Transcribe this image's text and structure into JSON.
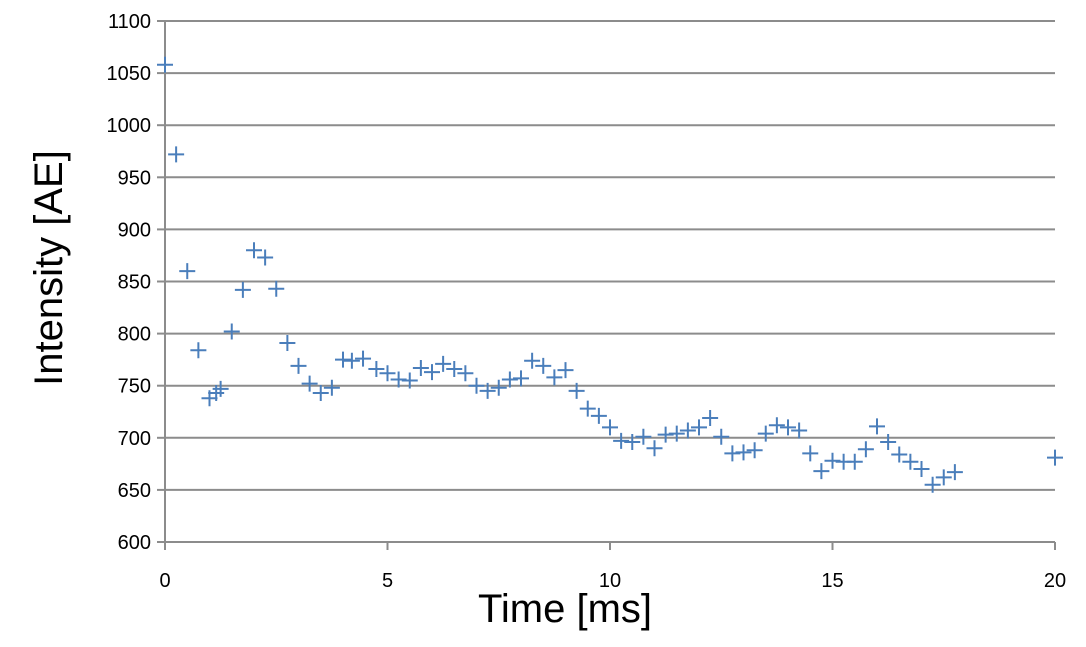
{
  "chart_data": {
    "type": "scatter",
    "xlabel": "Time [ms]",
    "ylabel": "Intensity [AE]",
    "xlim": [
      0,
      20
    ],
    "ylim": [
      600,
      1100
    ],
    "xticks": [
      "0",
      "5",
      "10",
      "15",
      "20"
    ],
    "yticks": [
      "600",
      "650",
      "700",
      "750",
      "800",
      "850",
      "900",
      "950",
      "1000",
      "1050",
      "1100"
    ],
    "grid": "horizontal",
    "marker": "plus",
    "color": "#4a7ebb",
    "series": [
      {
        "x": [
          0.0,
          0.25,
          0.5,
          0.75,
          1.0,
          1.15,
          1.25,
          1.5,
          1.75,
          2.0,
          2.25,
          2.5,
          2.75,
          3.0,
          3.25,
          3.5,
          3.75,
          4.0,
          4.2,
          4.45,
          4.75,
          5.0,
          5.25,
          5.5,
          5.75,
          6.0,
          6.25,
          6.5,
          6.75,
          7.0,
          7.25,
          7.5,
          7.75,
          8.0,
          8.25,
          8.5,
          8.75,
          9.0,
          9.25,
          9.5,
          9.75,
          10.0,
          10.25,
          10.5,
          10.75,
          11.0,
          11.25,
          11.5,
          11.75,
          12.0,
          12.25,
          12.5,
          12.75,
          13.0,
          13.25,
          13.5,
          13.75,
          14.0,
          14.25,
          14.5,
          14.75,
          15.0,
          15.25,
          15.5,
          15.75,
          16.0,
          16.25,
          16.5,
          16.75,
          17.0,
          17.25,
          17.5,
          17.75,
          20.0
        ],
        "y": [
          1058,
          972,
          860,
          784,
          738,
          743,
          747,
          802,
          842,
          880,
          873,
          843,
          791,
          769,
          752,
          743,
          748,
          775,
          774,
          776,
          766,
          762,
          756,
          755,
          767,
          763,
          771,
          766,
          762,
          750,
          745,
          748,
          756,
          757,
          774,
          769,
          758,
          765,
          745,
          728,
          721,
          710,
          697,
          696,
          701,
          690,
          703,
          704,
          707,
          710,
          719,
          701,
          685,
          686,
          688,
          704,
          712,
          710,
          707,
          685,
          668,
          678,
          677,
          677,
          689,
          711,
          696,
          684,
          677,
          670,
          655,
          662,
          667,
          681
        ]
      }
    ]
  }
}
